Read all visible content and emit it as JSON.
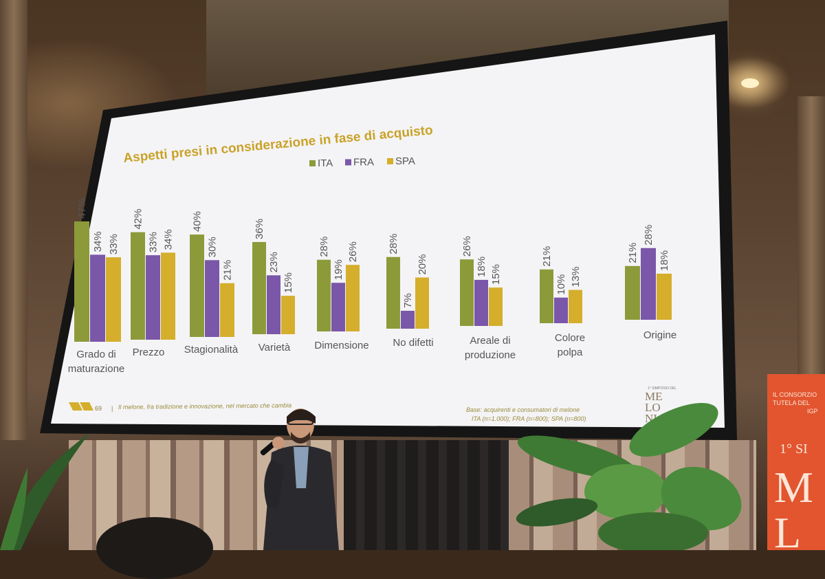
{
  "slide": {
    "title": "Aspetti presi in considerazione in fase di acquisto",
    "footer_page": "69",
    "footer_text": "Il melone, fra tradizione e innovazione, nel mercato che cambia",
    "base_line1": "Base:  acquirenti e consumatori di melone",
    "base_line2": "ITA (n=1.000); FRA (n=800); SPA (n=800)",
    "logo_letters": [
      "ME",
      "LO",
      "NI"
    ],
    "logo_small": "1° SIMPOSIO DEL"
  },
  "banner": {
    "line1": "IL CONSORZIO",
    "line2": "TUTELA DEL",
    "line3": "IGP",
    "line4": "1° SI",
    "line5": "M",
    "line6": "L"
  },
  "colors": {
    "ita": "#8d9a3a",
    "fra": "#7a57a8",
    "spa": "#d5ae2c",
    "title": "#c9a227",
    "slide_bg": "#f4f4f6"
  },
  "chart_data": {
    "type": "bar",
    "title": "Aspetti presi in considerazione in fase di acquisto",
    "legend_position": "top-center",
    "categories": [
      "Grado di maturazione",
      "Prezzo",
      "Stagionalità",
      "Varietà",
      "Dimensione",
      "No difetti",
      "Areale di produzione",
      "Colore polpa",
      "Origine"
    ],
    "category_lines": [
      [
        "Grado di",
        "maturazione"
      ],
      [
        "Prezzo"
      ],
      [
        "Stagionalità"
      ],
      [
        "Varietà"
      ],
      [
        "Dimensione"
      ],
      [
        "No difetti"
      ],
      [
        "Areale di",
        "produzione"
      ],
      [
        "Colore",
        "polpa"
      ],
      [
        "Origine"
      ]
    ],
    "series": [
      {
        "name": "ITA",
        "values": [
          47,
          42,
          40,
          36,
          28,
          28,
          26,
          21,
          21
        ]
      },
      {
        "name": "FRA",
        "values": [
          34,
          33,
          30,
          23,
          19,
          7,
          18,
          10,
          28
        ]
      },
      {
        "name": "SPA",
        "values": [
          33,
          34,
          21,
          15,
          26,
          20,
          15,
          13,
          18
        ]
      }
    ],
    "value_suffix": "%",
    "ylim": [
      0,
      50
    ]
  }
}
